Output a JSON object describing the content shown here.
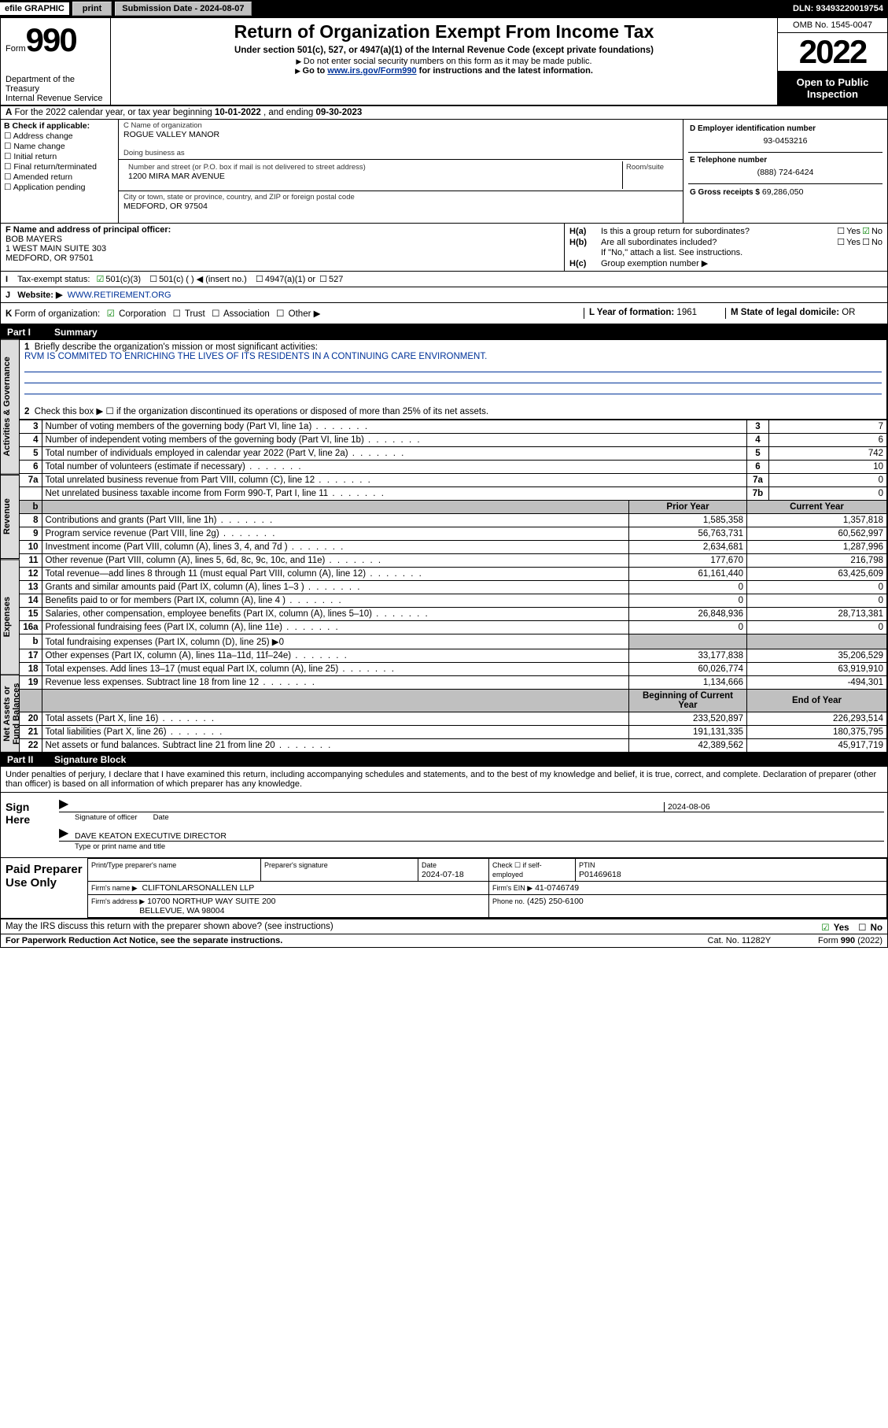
{
  "topbar": {
    "graphic_label": "efile GRAPHIC",
    "print_label": "print",
    "submission_label": "Submission Date - 2024-08-07",
    "dln": "DLN: 93493220019754"
  },
  "header": {
    "form_label": "Form",
    "form_num": "990",
    "dept": "Department of the Treasury\nInternal Revenue Service",
    "title": "Return of Organization Exempt From Income Tax",
    "sub1": "Under section 501(c), 527, or 4947(a)(1) of the Internal Revenue Code (except private foundations)",
    "sub2": "Do not enter social security numbers on this form as it may be made public.",
    "sub3_pre": "Go to ",
    "sub3_link": "www.irs.gov/Form990",
    "sub3_post": " for instructions and the latest information.",
    "omb": "OMB No. 1545-0047",
    "year": "2022",
    "open": "Open to Public Inspection"
  },
  "row_a": {
    "label": "A",
    "text": "For the 2022 calendar year, or tax year beginning ",
    "begin": "10-01-2022",
    "mid": " , and ending ",
    "end": "09-30-2023"
  },
  "section_b": {
    "label": "B Check if applicable:",
    "options": [
      "Address change",
      "Name change",
      "Initial return",
      "Final return/terminated",
      "Amended return",
      "Application pending"
    ],
    "c_name_lbl": "C Name of organization",
    "c_name": "ROGUE VALLEY MANOR",
    "dba_lbl": "Doing business as",
    "addr_lbl": "Number and street (or P.O. box if mail is not delivered to street address)",
    "addr": "1200 MIRA MAR AVENUE",
    "room_lbl": "Room/suite",
    "city_lbl": "City or town, state or province, country, and ZIP or foreign postal code",
    "city": "MEDFORD, OR  97504",
    "d_lbl": "D Employer identification number",
    "d_val": "93-0453216",
    "e_lbl": "E Telephone number",
    "e_val": "(888) 724-6424",
    "g_lbl": "G Gross receipts $",
    "g_val": "69,286,050"
  },
  "section_fh": {
    "f_lbl": "F Name and address of principal officer:",
    "f_name": "BOB MAYERS",
    "f_addr1": "1 WEST MAIN SUITE 303",
    "f_addr2": "MEDFORD, OR  97501",
    "ha_lbl": "H(a)",
    "ha_txt": "Is this a group return for subordinates?",
    "hb_lbl": "H(b)",
    "hb_txt": "Are all subordinates included?",
    "hb_note": "If \"No,\" attach a list. See instructions.",
    "hc_lbl": "H(c)",
    "hc_txt": "Group exemption number ▶",
    "yes": "Yes",
    "no": "No"
  },
  "row_i": {
    "label": "I",
    "title": "Tax-exempt status:",
    "opt1": "501(c)(3)",
    "opt2": "501(c) (  ) ◀ (insert no.)",
    "opt3": "4947(a)(1) or",
    "opt4": "527"
  },
  "row_j": {
    "label": "J",
    "title": "Website: ▶",
    "url": "WWW.RETIREMENT.ORG"
  },
  "row_k": {
    "label": "K",
    "title": "Form of organization:",
    "opts": [
      "Corporation",
      "Trust",
      "Association",
      "Other ▶"
    ],
    "l_lbl": "L Year of formation:",
    "l_val": "1961",
    "m_lbl": "M State of legal domicile:",
    "m_val": "OR"
  },
  "part1": {
    "num": "Part I",
    "title": "Summary",
    "q1_lbl": "1",
    "q1": "Briefly describe the organization's mission or most significant activities:",
    "q1_val": "RVM IS COMMITED TO ENRICHING THE LIVES OF ITS RESIDENTS IN A CONTINUING CARE ENVIRONMENT.",
    "q2": "Check this box ▶ ☐  if the organization discontinued its operations or disposed of more than 25% of its net assets.",
    "rows_simple": [
      {
        "n": "3",
        "d": "Number of voting members of the governing body (Part VI, line 1a)",
        "k": "3",
        "v": "7"
      },
      {
        "n": "4",
        "d": "Number of independent voting members of the governing body (Part VI, line 1b)",
        "k": "4",
        "v": "6"
      },
      {
        "n": "5",
        "d": "Total number of individuals employed in calendar year 2022 (Part V, line 2a)",
        "k": "5",
        "v": "742"
      },
      {
        "n": "6",
        "d": "Total number of volunteers (estimate if necessary)",
        "k": "6",
        "v": "10"
      },
      {
        "n": "7a",
        "d": "Total unrelated business revenue from Part VIII, column (C), line 12",
        "k": "7a",
        "v": "0"
      },
      {
        "n": "",
        "d": "Net unrelated business taxable income from Form 990-T, Part I, line 11",
        "k": "7b",
        "v": "0"
      }
    ],
    "hdr_b": "b",
    "hdr_prior": "Prior Year",
    "hdr_curr": "Current Year",
    "rows_rev": [
      {
        "n": "8",
        "d": "Contributions and grants (Part VIII, line 1h)",
        "p": "1,585,358",
        "c": "1,357,818"
      },
      {
        "n": "9",
        "d": "Program service revenue (Part VIII, line 2g)",
        "p": "56,763,731",
        "c": "60,562,997"
      },
      {
        "n": "10",
        "d": "Investment income (Part VIII, column (A), lines 3, 4, and 7d )",
        "p": "2,634,681",
        "c": "1,287,996"
      },
      {
        "n": "11",
        "d": "Other revenue (Part VIII, column (A), lines 5, 6d, 8c, 9c, 10c, and 11e)",
        "p": "177,670",
        "c": "216,798"
      },
      {
        "n": "12",
        "d": "Total revenue—add lines 8 through 11 (must equal Part VIII, column (A), line 12)",
        "p": "61,161,440",
        "c": "63,425,609"
      }
    ],
    "rows_exp": [
      {
        "n": "13",
        "d": "Grants and similar amounts paid (Part IX, column (A), lines 1–3 )",
        "p": "0",
        "c": "0"
      },
      {
        "n": "14",
        "d": "Benefits paid to or for members (Part IX, column (A), line 4 )",
        "p": "0",
        "c": "0"
      },
      {
        "n": "15",
        "d": "Salaries, other compensation, employee benefits (Part IX, column (A), lines 5–10)",
        "p": "26,848,936",
        "c": "28,713,381"
      },
      {
        "n": "16a",
        "d": "Professional fundraising fees (Part IX, column (A), line 11e)",
        "p": "0",
        "c": "0"
      },
      {
        "n": "b",
        "d": "Total fundraising expenses (Part IX, column (D), line 25) ▶0",
        "p": "",
        "c": "",
        "shade": true
      },
      {
        "n": "17",
        "d": "Other expenses (Part IX, column (A), lines 11a–11d, 11f–24e)",
        "p": "33,177,838",
        "c": "35,206,529"
      },
      {
        "n": "18",
        "d": "Total expenses. Add lines 13–17 (must equal Part IX, column (A), line 25)",
        "p": "60,026,774",
        "c": "63,919,910"
      },
      {
        "n": "19",
        "d": "Revenue less expenses. Subtract line 18 from line 12",
        "p": "1,134,666",
        "c": "-494,301"
      }
    ],
    "hdr_beg": "Beginning of Current Year",
    "hdr_end": "End of Year",
    "rows_net": [
      {
        "n": "20",
        "d": "Total assets (Part X, line 16)",
        "p": "233,520,897",
        "c": "226,293,514"
      },
      {
        "n": "21",
        "d": "Total liabilities (Part X, line 26)",
        "p": "191,131,335",
        "c": "180,375,795"
      },
      {
        "n": "22",
        "d": "Net assets or fund balances. Subtract line 21 from line 20",
        "p": "42,389,562",
        "c": "45,917,719"
      }
    ]
  },
  "side_tabs": [
    "Activities & Governance",
    "Revenue",
    "Expenses",
    "Net Assets or Fund Balances"
  ],
  "part2": {
    "num": "Part II",
    "title": "Signature Block",
    "intro": "Under penalties of perjury, I declare that I have examined this return, including accompanying schedules and statements, and to the best of my knowledge and belief, it is true, correct, and complete. Declaration of preparer (other than officer) is based on all information of which preparer has any knowledge.",
    "sign_here": "Sign Here",
    "sig_off_lbl": "Signature of officer",
    "date_lbl": "Date",
    "sig_date": "2024-08-06",
    "officer": "DAVE KEATON  EXECUTIVE DIRECTOR",
    "officer_lbl": "Type or print name and title",
    "paid": "Paid Preparer Use Only",
    "prep_name_lbl": "Print/Type preparer's name",
    "prep_sig_lbl": "Preparer's signature",
    "prep_date_lbl": "Date",
    "prep_date": "2024-07-18",
    "self_emp": "Check ☐ if self-employed",
    "ptin_lbl": "PTIN",
    "ptin": "P01469618",
    "firm_name_lbl": "Firm's name    ▶",
    "firm_name": "CLIFTONLARSONALLEN LLP",
    "firm_ein_lbl": "Firm's EIN ▶",
    "firm_ein": "41-0746749",
    "firm_addr_lbl": "Firm's address ▶",
    "firm_addr1": "10700 NORTHUP WAY SUITE 200",
    "firm_addr2": "BELLEVUE, WA  98004",
    "phone_lbl": "Phone no.",
    "phone": "(425) 250-6100",
    "discuss": "May the IRS discuss this return with the preparer shown above? (see instructions)",
    "yes": "Yes",
    "no": "No"
  },
  "footer": {
    "left": "For Paperwork Reduction Act Notice, see the separate instructions.",
    "mid": "Cat. No. 11282Y",
    "right": "Form 990 (2022)"
  },
  "colors": {
    "link": "#003399",
    "check_green": "#008000"
  }
}
